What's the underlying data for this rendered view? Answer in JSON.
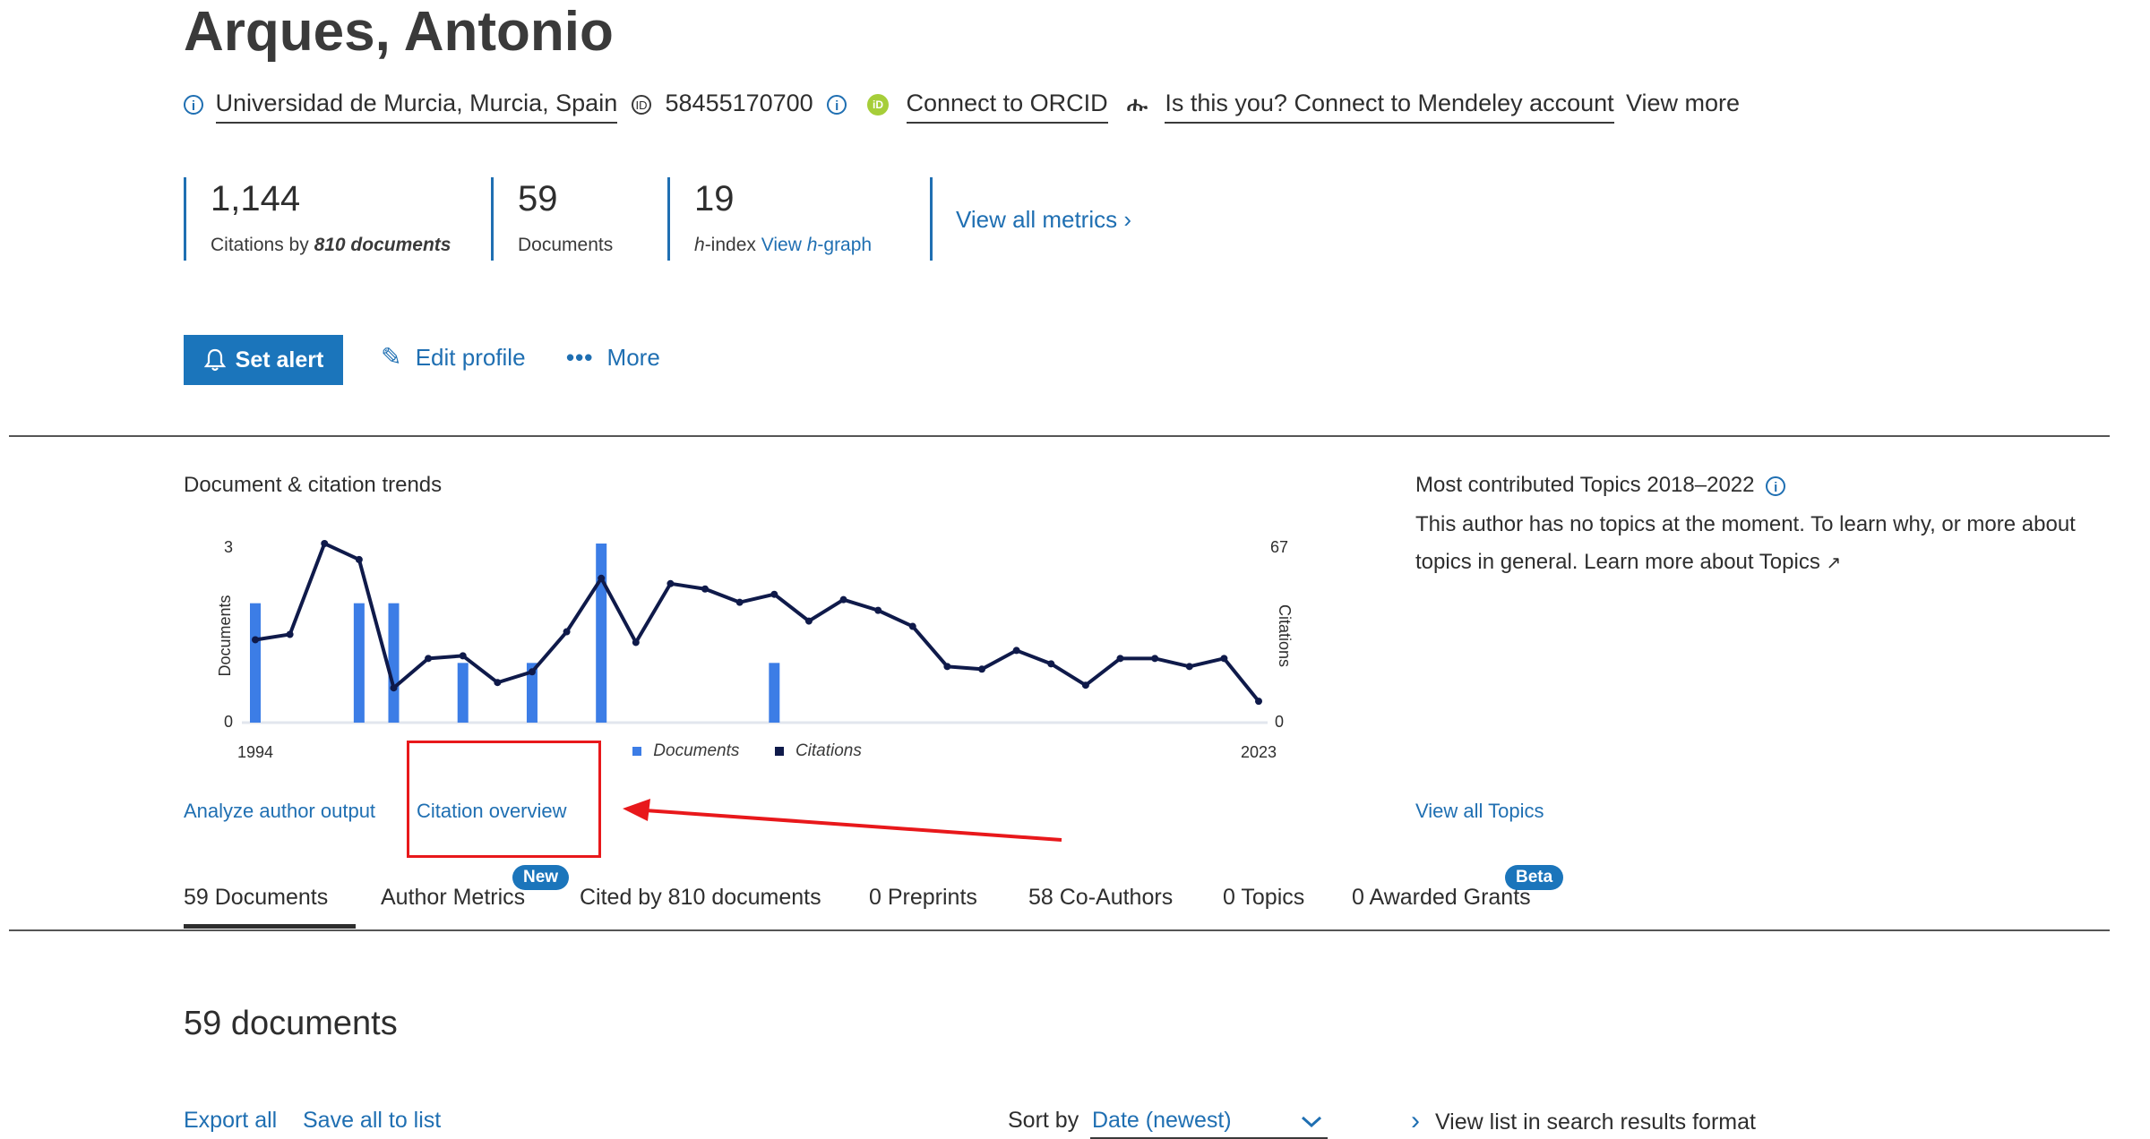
{
  "header": {
    "name": "Arques, Antonio",
    "affiliation": "Universidad de Murcia, Murcia, Spain",
    "author_id": "58455170700",
    "orcid_link": "Connect to ORCID",
    "mendeley_link": "Is this you? Connect to Mendeley account",
    "view_more": "View more"
  },
  "metrics": {
    "citations_value": "1,144",
    "citations_label_prefix": "Citations by ",
    "citations_label_docs": "810 documents",
    "documents_value": "59",
    "documents_label": "Documents",
    "hindex_value": "19",
    "hindex_label_h": "h",
    "hindex_label_rest": "-index ",
    "hindex_link_prefix": "View ",
    "hindex_link_h": "h",
    "hindex_link_rest": "-graph",
    "view_all_metrics": "View all metrics"
  },
  "actions": {
    "set_alert": "Set alert",
    "edit_profile": "Edit profile",
    "more": "More"
  },
  "trends": {
    "title": "Document & citation trends",
    "analyze_link": "Analyze author output",
    "citation_overview_link": "Citation overview"
  },
  "topics": {
    "title": "Most contributed Topics 2018–2022",
    "line1": "This author has no topics at the moment. To learn why, or more about",
    "line2": "topics in general. Learn more about Topics",
    "view_all": "View all Topics"
  },
  "tabs": [
    {
      "label": "59 Documents",
      "active": true
    },
    {
      "label": "Author Metrics",
      "badge": "New"
    },
    {
      "label": "Cited by 810 documents"
    },
    {
      "label": "0 Preprints"
    },
    {
      "label": "58 Co-Authors"
    },
    {
      "label": "0 Topics"
    },
    {
      "label": "0 Awarded Grants",
      "badge": "Beta"
    }
  ],
  "documents_section": {
    "heading": "59 documents",
    "export_all": "Export all",
    "save_all": "Save all to list",
    "sort_label": "Sort by",
    "sort_value": "Date (newest)",
    "view_list": "View list in search results format"
  },
  "colors": {
    "link": "#1f6fb2",
    "button": "#1b75bb",
    "documents_bar": "#3c7de6",
    "citations_line": "#0f1a4a",
    "annotation": "#e8181b"
  },
  "chart_data": {
    "type": "bar+line",
    "title": "Document & citation trends",
    "x_start_label": "1994",
    "x_end_label": "2023",
    "left_axis": {
      "label": "Documents",
      "ylim": [
        0,
        3
      ],
      "ticks": [
        "0",
        "3"
      ]
    },
    "right_axis": {
      "label": "Citations",
      "ylim": [
        0,
        67
      ],
      "ticks": [
        "0",
        "67"
      ]
    },
    "legend": [
      "Documents",
      "Citations"
    ],
    "x": [
      1994,
      1995,
      1996,
      1997,
      1998,
      1999,
      2000,
      2001,
      2002,
      2003,
      2004,
      2005,
      2006,
      2007,
      2008,
      2009,
      2010,
      2011,
      2012,
      2013,
      2014,
      2015,
      2016,
      2017,
      2018,
      2019,
      2020,
      2021,
      2022,
      2023
    ],
    "series": [
      {
        "name": "Documents",
        "kind": "bar",
        "values": [
          2,
          0,
          0,
          2,
          2,
          0,
          1,
          0,
          1,
          0,
          3,
          0,
          0,
          0,
          0,
          1,
          0,
          0,
          0,
          0,
          0,
          0,
          0,
          0,
          0,
          0,
          0,
          0,
          0,
          0
        ]
      },
      {
        "name": "Citations",
        "kind": "line",
        "values": [
          31,
          33,
          67,
          61,
          13,
          24,
          25,
          15,
          19,
          34,
          54,
          30,
          52,
          50,
          45,
          48,
          38,
          46,
          42,
          36,
          21,
          20,
          27,
          22,
          14,
          24,
          24,
          21,
          24,
          8
        ]
      }
    ]
  }
}
